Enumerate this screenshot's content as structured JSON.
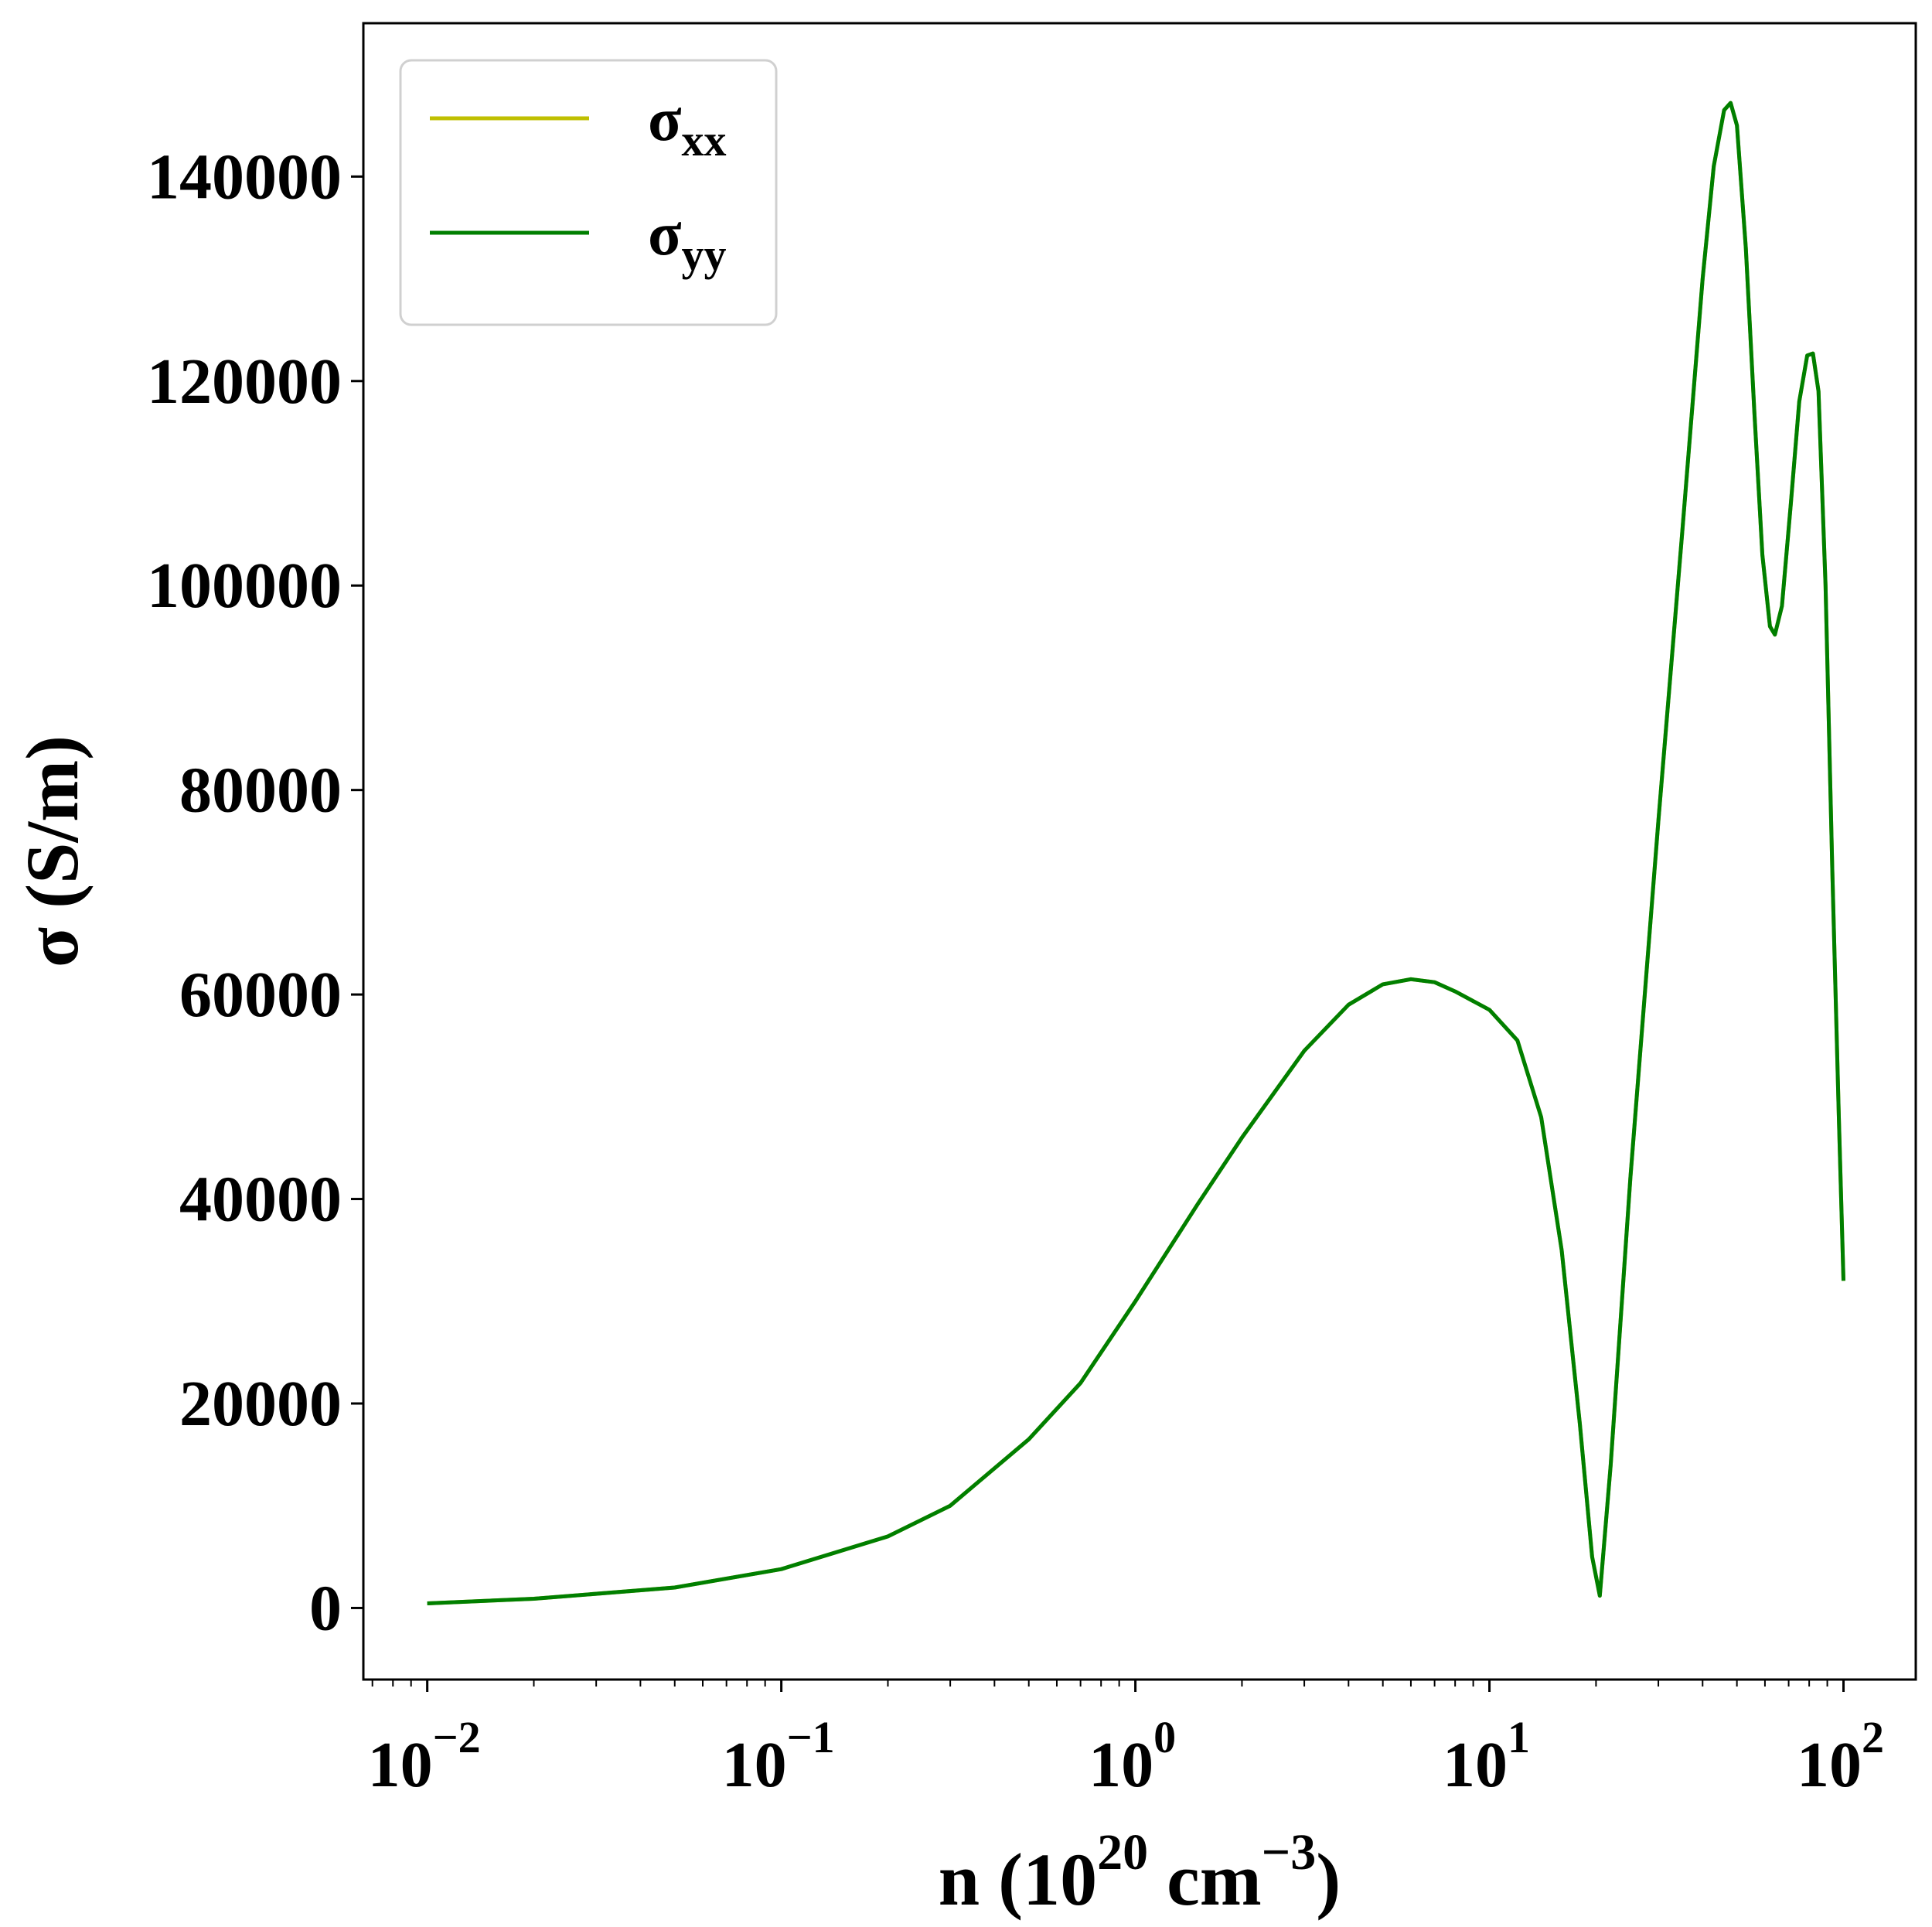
{
  "chart_data": {
    "type": "line",
    "xscale": "log",
    "xlim": [
      0.0066,
      160
    ],
    "ylim": [
      -7000,
      155000
    ],
    "xlabel": {
      "base": "n (10",
      "sup1": "20",
      "mid": " cm",
      "sup2": "−3",
      "end": ")"
    },
    "ylabel": "σ (S/m)",
    "grid": false,
    "legend_position": "upper-left",
    "x_ticks": [
      {
        "value": 0.01,
        "base": "10",
        "exp": "−2"
      },
      {
        "value": 0.1,
        "base": "10",
        "exp": "−1"
      },
      {
        "value": 1,
        "base": "10",
        "exp": "0"
      },
      {
        "value": 10,
        "base": "10",
        "exp": "1"
      },
      {
        "value": 100,
        "base": "10",
        "exp": "2"
      }
    ],
    "y_ticks": [
      {
        "value": 0,
        "label": "0"
      },
      {
        "value": 20000,
        "label": "20000"
      },
      {
        "value": 40000,
        "label": "40000"
      },
      {
        "value": 60000,
        "label": "60000"
      },
      {
        "value": 80000,
        "label": "80000"
      },
      {
        "value": 100000,
        "label": "100000"
      },
      {
        "value": 120000,
        "label": "120000"
      },
      {
        "value": 140000,
        "label": "140000"
      }
    ],
    "series": [
      {
        "name": "σ",
        "subscript": "xx",
        "color": "#bfbf00",
        "points": [
          [
            0.01,
            450
          ],
          [
            0.02,
            900
          ],
          [
            0.05,
            2000
          ],
          [
            0.1,
            3800
          ],
          [
            0.2,
            7000
          ],
          [
            0.3,
            10000
          ],
          [
            0.5,
            16500
          ],
          [
            0.7,
            22000
          ],
          [
            1.0,
            30000
          ],
          [
            1.5,
            39500
          ],
          [
            2.0,
            46000
          ],
          [
            3.0,
            54500
          ],
          [
            4.0,
            59000
          ],
          [
            5.0,
            61000
          ],
          [
            6.0,
            61500
          ],
          [
            7.0,
            61200
          ],
          [
            8.0,
            60300
          ],
          [
            10.0,
            58500
          ],
          [
            12.0,
            55500
          ],
          [
            14.0,
            48000
          ],
          [
            16.0,
            35000
          ],
          [
            18.0,
            18000
          ],
          [
            19.5,
            5000
          ],
          [
            20.5,
            1200
          ],
          [
            22.0,
            14000
          ],
          [
            25.0,
            42000
          ],
          [
            30.0,
            77000
          ],
          [
            35.0,
            105000
          ],
          [
            40.0,
            130000
          ],
          [
            43.0,
            141000
          ],
          [
            46.0,
            146500
          ],
          [
            48.0,
            147200
          ],
          [
            50.0,
            145000
          ],
          [
            53.0,
            133000
          ],
          [
            56.0,
            117000
          ],
          [
            59.0,
            103000
          ],
          [
            62.0,
            96000
          ],
          [
            64.0,
            95200
          ],
          [
            67.0,
            98000
          ],
          [
            71.0,
            108000
          ],
          [
            75.0,
            118000
          ],
          [
            79.0,
            122500
          ],
          [
            82.0,
            122700
          ],
          [
            85.0,
            119000
          ],
          [
            89.0,
            100000
          ],
          [
            93.0,
            72000
          ],
          [
            97.0,
            48000
          ],
          [
            100.0,
            32000
          ]
        ]
      },
      {
        "name": "σ",
        "subscript": "yy",
        "color": "#007f00",
        "points": [
          [
            0.01,
            450
          ],
          [
            0.02,
            900
          ],
          [
            0.05,
            2000
          ],
          [
            0.1,
            3800
          ],
          [
            0.2,
            7000
          ],
          [
            0.3,
            10000
          ],
          [
            0.5,
            16500
          ],
          [
            0.7,
            22000
          ],
          [
            1.0,
            30000
          ],
          [
            1.5,
            39500
          ],
          [
            2.0,
            46000
          ],
          [
            3.0,
            54500
          ],
          [
            4.0,
            59000
          ],
          [
            5.0,
            61000
          ],
          [
            6.0,
            61500
          ],
          [
            7.0,
            61200
          ],
          [
            8.0,
            60300
          ],
          [
            10.0,
            58500
          ],
          [
            12.0,
            55500
          ],
          [
            14.0,
            48000
          ],
          [
            16.0,
            35000
          ],
          [
            18.0,
            18000
          ],
          [
            19.5,
            5000
          ],
          [
            20.5,
            1200
          ],
          [
            22.0,
            14000
          ],
          [
            25.0,
            42000
          ],
          [
            30.0,
            77000
          ],
          [
            35.0,
            105000
          ],
          [
            40.0,
            130000
          ],
          [
            43.0,
            141000
          ],
          [
            46.0,
            146500
          ],
          [
            48.0,
            147200
          ],
          [
            50.0,
            145000
          ],
          [
            53.0,
            133000
          ],
          [
            56.0,
            117000
          ],
          [
            59.0,
            103000
          ],
          [
            62.0,
            96000
          ],
          [
            64.0,
            95200
          ],
          [
            67.0,
            98000
          ],
          [
            71.0,
            108000
          ],
          [
            75.0,
            118000
          ],
          [
            79.0,
            122500
          ],
          [
            82.0,
            122700
          ],
          [
            85.0,
            119000
          ],
          [
            89.0,
            100000
          ],
          [
            93.0,
            72000
          ],
          [
            97.0,
            48000
          ],
          [
            100.0,
            32000
          ]
        ]
      }
    ]
  }
}
